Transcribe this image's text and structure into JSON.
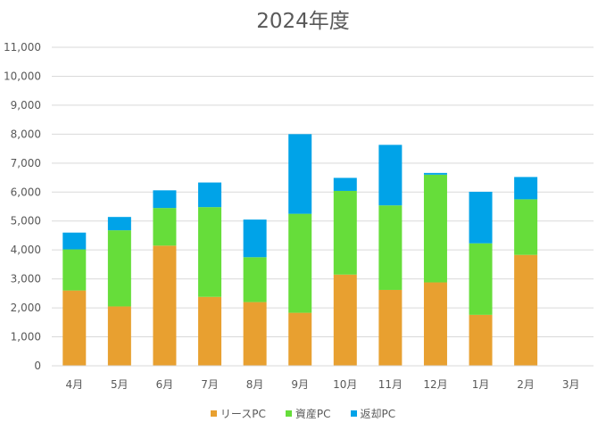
{
  "chart_data": {
    "type": "bar",
    "stacked": true,
    "title": "2024年度",
    "xlabel": "",
    "ylabel": "",
    "categories": [
      "4月",
      "5月",
      "6月",
      "7月",
      "8月",
      "9月",
      "10月",
      "11月",
      "12月",
      "1月",
      "2月",
      "3月"
    ],
    "series": [
      {
        "name": "リースPC",
        "color": "#E8A030",
        "values": [
          2600,
          2050,
          4150,
          2380,
          2200,
          1830,
          3150,
          2620,
          2880,
          1760,
          3830,
          0
        ]
      },
      {
        "name": "資産PC",
        "color": "#66DD3A",
        "values": [
          1420,
          2630,
          1300,
          3100,
          1550,
          3420,
          2890,
          2920,
          3720,
          2470,
          1920,
          0
        ]
      },
      {
        "name": "返却PC",
        "color": "#00A3E8",
        "values": [
          580,
          460,
          610,
          850,
          1300,
          2750,
          450,
          2090,
          60,
          1780,
          770,
          0
        ]
      }
    ],
    "ylim": [
      0,
      11000
    ],
    "yticks": [
      0,
      1000,
      2000,
      3000,
      4000,
      5000,
      6000,
      7000,
      8000,
      9000,
      10000,
      11000
    ],
    "ytick_labels": [
      "0",
      "1,000",
      "2,000",
      "3,000",
      "4,000",
      "5,000",
      "6,000",
      "7,000",
      "8,000",
      "9,000",
      "10,000",
      "11,000"
    ],
    "grid": true,
    "legend_position": "bottom"
  }
}
